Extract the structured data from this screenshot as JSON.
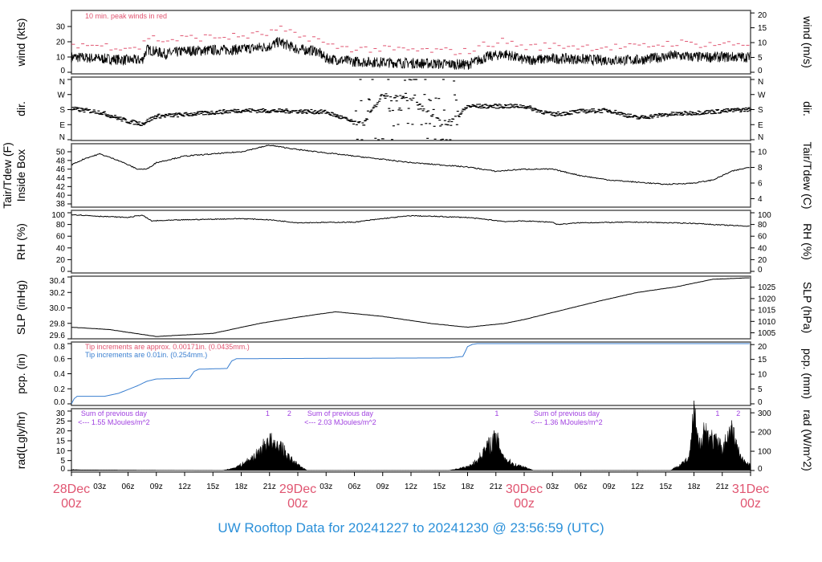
{
  "title": "UW Rooftop Data for 20241227  to  20241230 @ 23:56:59  (UTC)",
  "colors": {
    "title": "#2b90d9",
    "date": "#e05470",
    "peak": "#e05470",
    "pcp": "#3a7fd0",
    "annot_purple": "#a040e0",
    "line": "#000000"
  },
  "chart_data": [
    {
      "id": "wind",
      "type": "line",
      "ylabel": "wind (kts)",
      "ylabel_right": "wind (m/s)",
      "ylim": [
        0,
        35
      ],
      "yticks": [
        0,
        10,
        20,
        30
      ],
      "yticks_right": [
        0,
        5,
        10,
        15,
        20
      ],
      "right_scale": 0.5144,
      "annotation": "10 min. peak winds in red",
      "series": [
        {
          "name": "mean wind",
          "points": [
            [
              0,
              10
            ],
            [
              3,
              9
            ],
            [
              6,
              8
            ],
            [
              7.5,
              8
            ],
            [
              8,
              15
            ],
            [
              10,
              12
            ],
            [
              12,
              14
            ],
            [
              18,
              15
            ],
            [
              21,
              17
            ],
            [
              22,
              20
            ],
            [
              24,
              15
            ],
            [
              26,
              14
            ],
            [
              27,
              9
            ],
            [
              30,
              7
            ],
            [
              36,
              6
            ],
            [
              42,
              5
            ],
            [
              44,
              10
            ],
            [
              46,
              12
            ],
            [
              48,
              8
            ],
            [
              52,
              9
            ],
            [
              56,
              8
            ],
            [
              60,
              8
            ],
            [
              64,
              11
            ],
            [
              66,
              10
            ],
            [
              72,
              10
            ]
          ]
        },
        {
          "name": "10 min peak",
          "offset": 6
        }
      ]
    },
    {
      "id": "dir",
      "type": "scatter",
      "ylabel": "dir.",
      "ylabel_right": "dir.",
      "ylim": [
        0,
        360
      ],
      "yticks": [
        "N",
        "E",
        "S",
        "W",
        "N"
      ],
      "series": [
        {
          "name": "direction",
          "points": [
            [
              0,
              185
            ],
            [
              3,
              165
            ],
            [
              6,
              110
            ],
            [
              7.5,
              95
            ],
            [
              9,
              140
            ],
            [
              12,
              150
            ],
            [
              18,
              175
            ],
            [
              24,
              170
            ],
            [
              27,
              165
            ],
            [
              29,
              125
            ],
            [
              30,
              100
            ],
            [
              31,
              95
            ],
            [
              33,
              270
            ],
            [
              36,
              250
            ],
            [
              39,
              110
            ],
            [
              40,
              105
            ],
            [
              41,
              140
            ],
            [
              42,
              200
            ],
            [
              48,
              200
            ],
            [
              51,
              150
            ],
            [
              54,
              170
            ],
            [
              57,
              175
            ],
            [
              60,
              130
            ],
            [
              63,
              150
            ],
            [
              66,
              160
            ],
            [
              72,
              182
            ]
          ]
        }
      ]
    },
    {
      "id": "tair",
      "type": "line",
      "ylabel": "Tair/Tdew (F)\nInside Box",
      "ylabel_right": "Tair/Tdew (C)",
      "ylim": [
        37.5,
        52
      ],
      "yticks": [
        38,
        40,
        42,
        44,
        46,
        48,
        50
      ],
      "yticks_right": [
        4,
        6,
        8,
        10
      ],
      "series": [
        {
          "name": "Tair",
          "points": [
            [
              0,
              47
            ],
            [
              1.5,
              48.5
            ],
            [
              3,
              49.5
            ],
            [
              5,
              48
            ],
            [
              7,
              46
            ],
            [
              8,
              46
            ],
            [
              9,
              47.5
            ],
            [
              12,
              49
            ],
            [
              15,
              49.5
            ],
            [
              18,
              50
            ],
            [
              21,
              51.5
            ],
            [
              24,
              50.5
            ],
            [
              30,
              49
            ],
            [
              36,
              47.5
            ],
            [
              42,
              46.5
            ],
            [
              45,
              45.5
            ],
            [
              48,
              46
            ],
            [
              51,
              46
            ],
            [
              54,
              44.5
            ],
            [
              57,
              43.5
            ],
            [
              60,
              43
            ],
            [
              63,
              42.5
            ],
            [
              66,
              42.8
            ],
            [
              68,
              43.5
            ],
            [
              70,
              45.5
            ],
            [
              72,
              46.5
            ]
          ]
        }
      ]
    },
    {
      "id": "rh",
      "type": "line",
      "ylabel": "RH (%)",
      "ylabel_right": "RH (%)",
      "ylim": [
        0,
        100
      ],
      "yticks": [
        0,
        20,
        40,
        60,
        80,
        100
      ],
      "yticks_right": [
        0,
        20,
        40,
        60,
        80,
        100
      ],
      "series": [
        {
          "name": "RH",
          "points": [
            [
              0,
              97
            ],
            [
              3,
              94
            ],
            [
              6,
              92
            ],
            [
              7.5,
              96
            ],
            [
              8.5,
              86
            ],
            [
              12,
              88
            ],
            [
              18,
              90
            ],
            [
              21,
              88
            ],
            [
              24,
              83
            ],
            [
              30,
              84
            ],
            [
              33,
              90
            ],
            [
              36,
              95
            ],
            [
              42,
              92
            ],
            [
              46,
              85
            ],
            [
              48,
              86
            ],
            [
              51,
              84
            ],
            [
              51.5,
              80
            ],
            [
              54,
              83
            ],
            [
              60,
              84
            ],
            [
              66,
              82
            ],
            [
              69,
              79
            ],
            [
              72,
              77
            ]
          ]
        }
      ]
    },
    {
      "id": "slp",
      "type": "line",
      "ylabel": "SLP (inHg)",
      "ylabel_right": "SLP (hPa)",
      "ylim": [
        29.6,
        30.4
      ],
      "yticks": [
        29.6,
        29.8,
        30.0,
        30.2,
        30.4
      ],
      "yticks_right": [
        1005,
        1010,
        1015,
        1020,
        1025
      ],
      "series": [
        {
          "name": "SLP",
          "points": [
            [
              0,
              29.75
            ],
            [
              4,
              29.72
            ],
            [
              9,
              29.63
            ],
            [
              15,
              29.67
            ],
            [
              20,
              29.8
            ],
            [
              24,
              29.88
            ],
            [
              28,
              29.95
            ],
            [
              33,
              29.89
            ],
            [
              38,
              29.8
            ],
            [
              42,
              29.75
            ],
            [
              46,
              29.8
            ],
            [
              48,
              29.85
            ],
            [
              52,
              29.97
            ],
            [
              56,
              30.09
            ],
            [
              60,
              30.2
            ],
            [
              64,
              30.27
            ],
            [
              68,
              30.37
            ],
            [
              72,
              30.39
            ]
          ]
        }
      ]
    },
    {
      "id": "pcp",
      "type": "line",
      "ylabel": "pcp. (in)",
      "ylabel_right": "pcp. (mm)",
      "ylim": [
        0,
        0.83
      ],
      "yticks": [
        0.0,
        0.2,
        0.4,
        0.6,
        0.8
      ],
      "yticks_right": [
        0,
        5,
        10,
        15,
        20
      ],
      "annotations": [
        "Tip increments are approx. 0.00171in. (0.0435mm.)",
        "Tip increments are 0.01in. (0.254mm.)"
      ],
      "series": [
        {
          "name": "precip",
          "points": [
            [
              0,
              0
            ],
            [
              0.3,
              0.07
            ],
            [
              0.6,
              0.1
            ],
            [
              3.5,
              0.1
            ],
            [
              5,
              0.14
            ],
            [
              7,
              0.24
            ],
            [
              8,
              0.3
            ],
            [
              9,
              0.33
            ],
            [
              12.5,
              0.34
            ],
            [
              13,
              0.43
            ],
            [
              13.5,
              0.46
            ],
            [
              16.5,
              0.47
            ],
            [
              17,
              0.57
            ],
            [
              17.5,
              0.6
            ],
            [
              40,
              0.61
            ],
            [
              41.5,
              0.63
            ],
            [
              42,
              0.76
            ],
            [
              42.5,
              0.79
            ],
            [
              43,
              0.8
            ],
            [
              72,
              0.8
            ]
          ]
        }
      ]
    },
    {
      "id": "rad",
      "type": "area",
      "ylabel": "rad(Lgly/hr)",
      "ylabel_right": "rad (W/m^2)",
      "ylim": [
        0,
        30
      ],
      "yticks": [
        0,
        5,
        10,
        15,
        20,
        25,
        30
      ],
      "yticks_right": [
        0,
        100,
        200,
        300
      ],
      "annotations": [
        {
          "day": 0,
          "line1": "Sum of previous day",
          "line2": "<--- 1.55 MJoules/m^2"
        },
        {
          "day": 1,
          "line1": "Sum of previous day",
          "line2": "<--- 2.03 MJoules/m^2"
        },
        {
          "day": 2,
          "line1": "Sum of previous day",
          "line2": "<--- 1.36 MJoules/m^2"
        }
      ],
      "markers": [
        {
          "hour": 20.8,
          "label": "1"
        },
        {
          "hour": 23.1,
          "label": "2"
        },
        {
          "hour": 45.1,
          "label": "1"
        },
        {
          "hour": 68.5,
          "label": "1"
        },
        {
          "hour": 70.7,
          "label": "2"
        }
      ],
      "series": [
        {
          "name": "radiation",
          "points": [
            [
              0,
              0.5
            ],
            [
              1,
              0.3
            ],
            [
              16,
              0
            ],
            [
              17,
              1
            ],
            [
              18,
              3
            ],
            [
              19,
              6
            ],
            [
              20,
              10
            ],
            [
              21,
              17
            ],
            [
              21.5,
              12
            ],
            [
              22,
              14
            ],
            [
              23,
              7
            ],
            [
              24,
              3
            ],
            [
              25,
              0
            ],
            [
              40,
              0
            ],
            [
              41,
              1
            ],
            [
              42,
              2
            ],
            [
              43,
              5
            ],
            [
              44,
              12
            ],
            [
              45,
              17
            ],
            [
              46,
              6
            ],
            [
              47,
              3
            ],
            [
              48,
              2
            ],
            [
              49,
              0
            ],
            [
              63.5,
              0
            ],
            [
              64.5,
              3
            ],
            [
              65.5,
              6
            ],
            [
              66,
              30
            ],
            [
              66.5,
              12
            ],
            [
              67,
              22
            ],
            [
              68,
              16
            ],
            [
              69,
              12
            ],
            [
              70,
              21
            ],
            [
              71,
              6
            ],
            [
              72,
              3
            ]
          ]
        }
      ]
    }
  ],
  "xaxis": {
    "hour_ticks": [
      "03z",
      "06z",
      "09z",
      "12z",
      "15z",
      "18z",
      "21z"
    ],
    "days": [
      {
        "label": "28Dec",
        "sub": "00z"
      },
      {
        "label": "29Dec",
        "sub": "00z"
      },
      {
        "label": "30Dec",
        "sub": "00z"
      },
      {
        "label": "31Dec",
        "sub": "00z"
      }
    ],
    "hours_total": 72
  }
}
